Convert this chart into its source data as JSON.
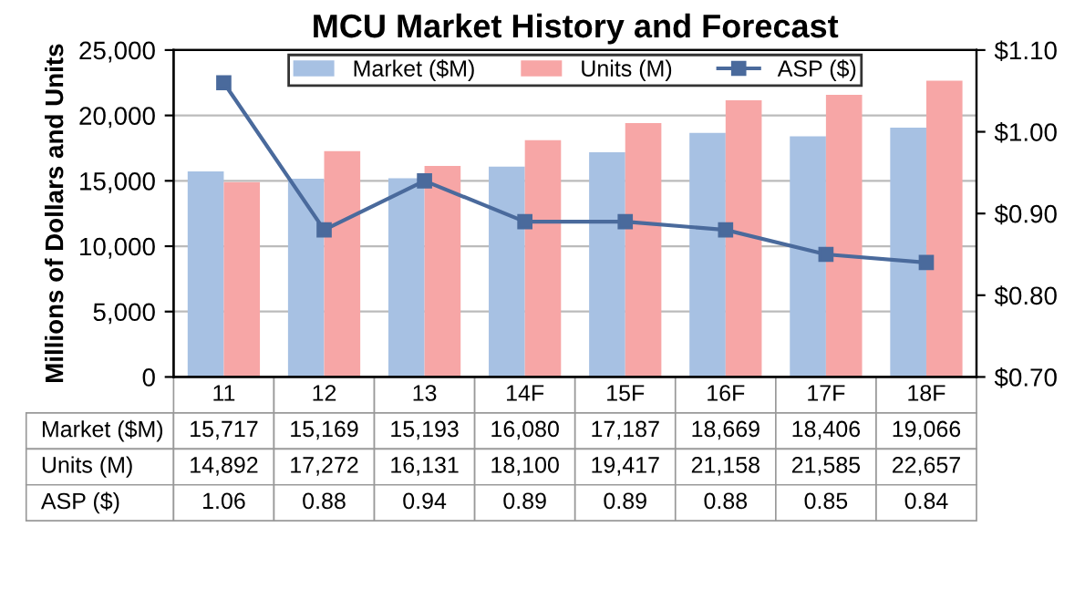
{
  "chart_data": {
    "type": "bar",
    "title": "MCU Market History and Forecast",
    "ylabel": "Millions of Dollars and Units",
    "categories": [
      "11",
      "12",
      "13",
      "14F",
      "15F",
      "16F",
      "17F",
      "18F"
    ],
    "series": [
      {
        "name": "Market ($M)",
        "color": "#a7c1e3",
        "values": [
          15717,
          15169,
          15193,
          16080,
          17187,
          18669,
          18406,
          19066
        ],
        "value_labels": [
          "15,717",
          "15,169",
          "15,193",
          "16,080",
          "17,187",
          "18,669",
          "18,406",
          "19,066"
        ]
      },
      {
        "name": "Units (M)",
        "color": "#f7a6a6",
        "values": [
          14892,
          17272,
          16131,
          18100,
          19417,
          21158,
          21585,
          22657
        ],
        "value_labels": [
          "14,892",
          "17,272",
          "16,131",
          "18,100",
          "19,417",
          "21,158",
          "21,585",
          "22,657"
        ]
      },
      {
        "name": "ASP ($)",
        "type": "line",
        "axis": "y2",
        "color": "#4a6a9c",
        "marker": "square",
        "values": [
          1.06,
          0.88,
          0.94,
          0.89,
          0.89,
          0.88,
          0.85,
          0.84
        ],
        "value_labels": [
          "1.06",
          "0.88",
          "0.94",
          "0.89",
          "0.89",
          "0.88",
          "0.85",
          "0.84"
        ]
      }
    ],
    "ylim": [
      0,
      25000
    ],
    "yticks": [
      {
        "value": 0,
        "label": "0"
      },
      {
        "value": 5000,
        "label": "5,000"
      },
      {
        "value": 10000,
        "label": "10,000"
      },
      {
        "value": 15000,
        "label": "15,000"
      },
      {
        "value": 20000,
        "label": "20,000"
      },
      {
        "value": 25000,
        "label": "25,000"
      }
    ],
    "y2lim": [
      0.7,
      1.1
    ],
    "y2ticks": [
      {
        "value": 0.7,
        "label": "$0.70"
      },
      {
        "value": 0.8,
        "label": "$0.80"
      },
      {
        "value": 0.9,
        "label": "$0.90"
      },
      {
        "value": 1.0,
        "label": "$1.00"
      },
      {
        "value": 1.1,
        "label": "$1.10"
      }
    ],
    "grid": "y",
    "legend": "top"
  }
}
